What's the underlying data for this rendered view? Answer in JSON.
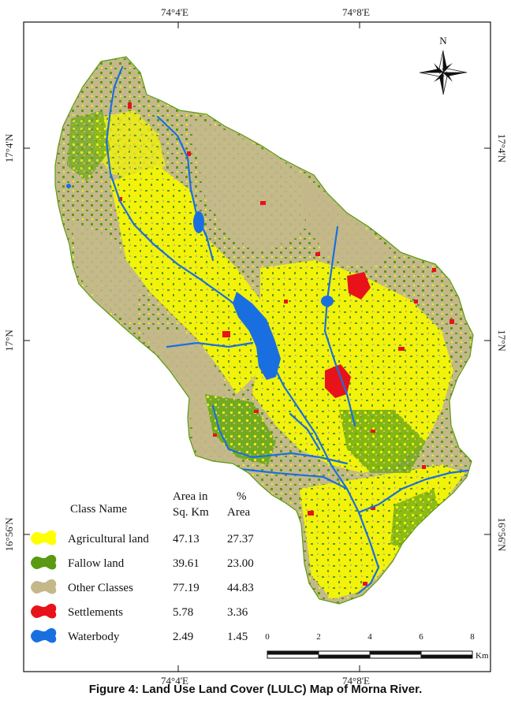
{
  "map": {
    "graticule": {
      "top": [
        "74°4'E",
        "74°8'E"
      ],
      "bottom": [
        "74°4'E",
        "74°8'E"
      ],
      "left": [
        "17°4'N",
        "17°N",
        "16°56'N"
      ],
      "right": [
        "17°4'N",
        "17°N",
        "16°56'N"
      ]
    },
    "north_arrow": {
      "label": "N"
    },
    "legend": {
      "headers": {
        "class": "Class Name",
        "area_l1": "Area in",
        "area_l2": "Sq. Km",
        "pct_l1": "%",
        "pct_l2": "Area"
      },
      "items": [
        {
          "name": "Agricultural land",
          "area": "47.13",
          "percent": "27.37",
          "color": "#ffff00"
        },
        {
          "name": "Fallow land",
          "area": "39.61",
          "percent": "23.00",
          "color": "#5a9a12"
        },
        {
          "name": "Other Classes",
          "area": "77.19",
          "percent": "44.83",
          "color": "#c4b88a"
        },
        {
          "name": "Settlements",
          "area": "5.78",
          "percent": "3.36",
          "color": "#e8121a"
        },
        {
          "name": "Waterbody",
          "area": "2.49",
          "percent": "1.45",
          "color": "#1a6fe0"
        }
      ]
    },
    "scale_bar": {
      "ticks": [
        "0",
        "2",
        "4",
        "6",
        "8"
      ],
      "unit": "Km"
    }
  },
  "caption": "Figure 4: Land Use Land Cover (LULC) Map of Morna River."
}
